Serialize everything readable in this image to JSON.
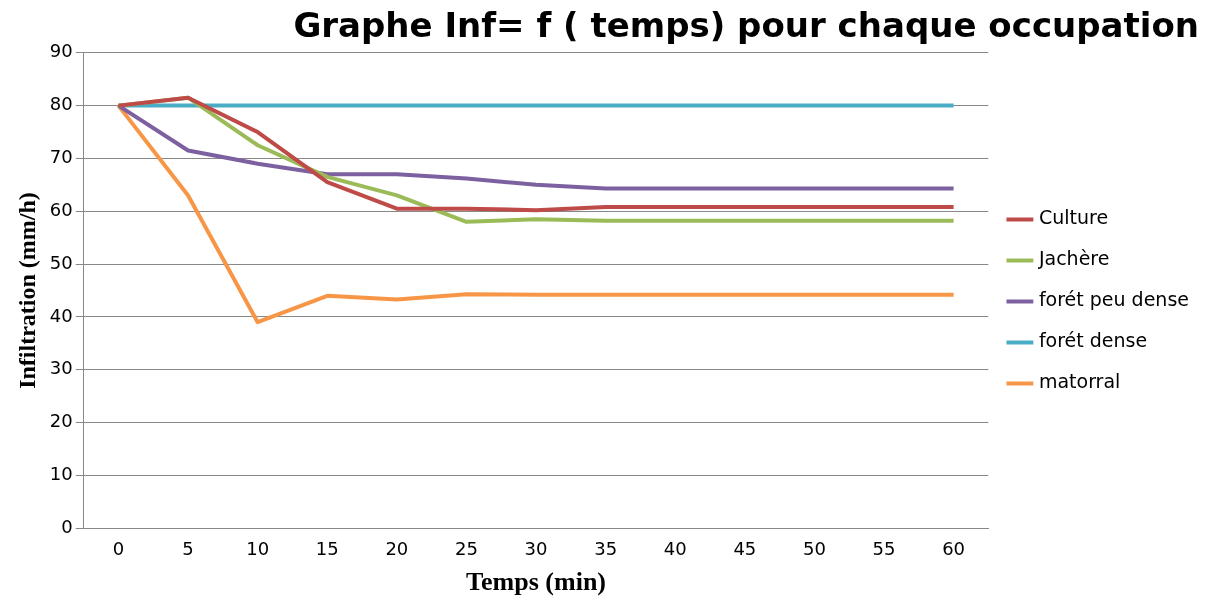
{
  "chart_data": {
    "type": "line",
    "title": "Graphe Inf= f ( temps) pour chaque occupation",
    "xlabel": "Temps (min)",
    "ylabel": "Infiltration (mm/h)",
    "categories": [
      "0",
      "5",
      "10",
      "15",
      "20",
      "25",
      "30",
      "35",
      "40",
      "45",
      "50",
      "55",
      "60"
    ],
    "series": [
      {
        "name": "Culture",
        "color": "#be4b48",
        "values": [
          80,
          81.5,
          75,
          65.5,
          60.5,
          60.5,
          60.2,
          60.8,
          60.8,
          60.8,
          60.8,
          60.8,
          60.8
        ]
      },
      {
        "name": "Jachère",
        "color": "#9bbb59",
        "values": [
          80,
          81.5,
          72.5,
          66.5,
          63,
          58,
          58.5,
          58.2,
          58.2,
          58.2,
          58.2,
          58.2,
          58.2
        ]
      },
      {
        "name": "forét peu dense",
        "color": "#7d60a0",
        "values": [
          80,
          71.5,
          69,
          67,
          67,
          66.2,
          65,
          64.3,
          64.3,
          64.3,
          64.3,
          64.3,
          64.3
        ]
      },
      {
        "name": "forét dense",
        "color": "#4bacc6",
        "values": [
          80,
          80,
          80,
          80,
          80,
          80,
          80,
          80,
          80,
          80,
          80,
          80,
          80
        ]
      },
      {
        "name": "matorral",
        "color": "#f79646",
        "values": [
          80,
          63,
          39,
          44,
          43.3,
          44.3,
          44.2,
          44.2,
          44.2,
          44.2,
          44.2,
          44.2,
          44.2
        ]
      }
    ],
    "ylim": [
      0,
      90
    ],
    "yticks": [
      0,
      10,
      20,
      30,
      40,
      50,
      60,
      70,
      80,
      90
    ],
    "grid": "y",
    "legend": "right",
    "marker": "none",
    "line_style": "solid"
  }
}
